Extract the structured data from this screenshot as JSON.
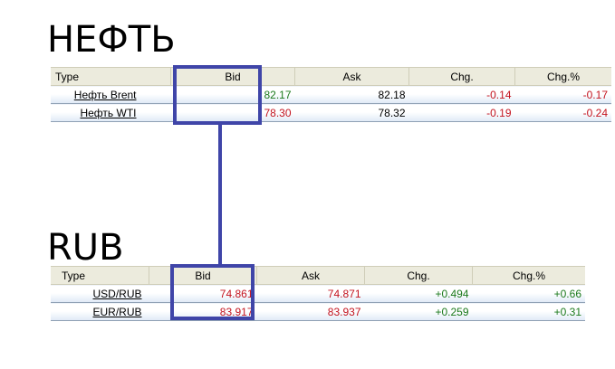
{
  "oil": {
    "heading": "НЕФТЬ",
    "columns": [
      "Type",
      "Bid",
      "Ask",
      "Chg.",
      "Chg.%"
    ],
    "rows": [
      {
        "type": "Нефть Brent",
        "bid": "82.17",
        "ask": "82.18",
        "chg": "-0.14",
        "chg_pct": "-0.17"
      },
      {
        "type": "Нефть WTI",
        "bid": "78.30",
        "ask": "78.32",
        "chg": "-0.19",
        "chg_pct": "-0.24"
      }
    ]
  },
  "rub": {
    "heading": "RUB",
    "columns": [
      "Type",
      "Bid",
      "Ask",
      "Chg.",
      "Chg.%"
    ],
    "rows": [
      {
        "type": "USD/RUB",
        "bid": "74.861",
        "ask": "74.871",
        "chg": "+0.494",
        "chg_pct": "+0.66"
      },
      {
        "type": "EUR/RUB",
        "bid": "83.917",
        "ask": "83.937",
        "chg": "+0.259",
        "chg_pct": "+0.31"
      }
    ]
  },
  "colors": {
    "highlight": "#3f45a8",
    "up": "#1c7a1c",
    "down": "#c4141f",
    "header_bg": "#ecebdd"
  }
}
